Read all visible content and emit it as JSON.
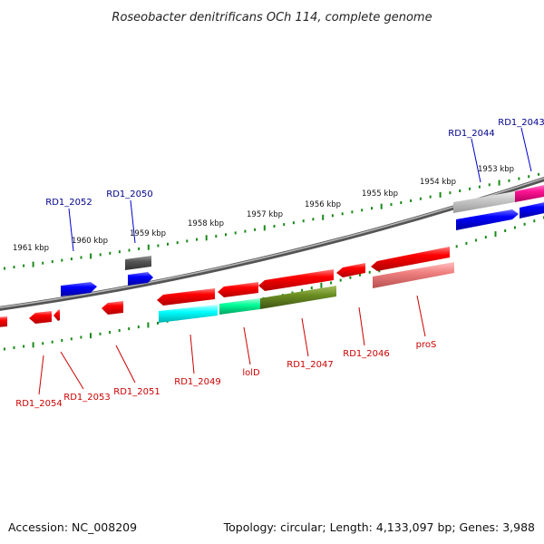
{
  "title": "Roseobacter denitrificans OCh 114, complete genome",
  "footer": {
    "accession": "Accession: NC_008209",
    "topology": "Topology: circular; Length: 4,133,097 bp; Genes: 3,988"
  },
  "colors": {
    "top_label": "#00008b",
    "bottom_label": "#cc0000",
    "tick": "#1a8a1a",
    "backbone": "#777777"
  },
  "ticks": [
    "1961 kbp",
    "1960 kbp",
    "1959 kbp",
    "1958 kbp",
    "1957 kbp",
    "1956 kbp",
    "1955 kbp",
    "1954 kbp",
    "1953 kbp"
  ],
  "top_gene_labels": [
    "RD1_2052",
    "RD1_2050",
    "RD1_2044",
    "RD1_2043"
  ],
  "bottom_gene_labels": [
    "RD1_2054",
    "RD1_2053",
    "RD1_2051",
    "RD1_2049",
    "lolD",
    "RD1_2047",
    "RD1_2046",
    "proS"
  ]
}
